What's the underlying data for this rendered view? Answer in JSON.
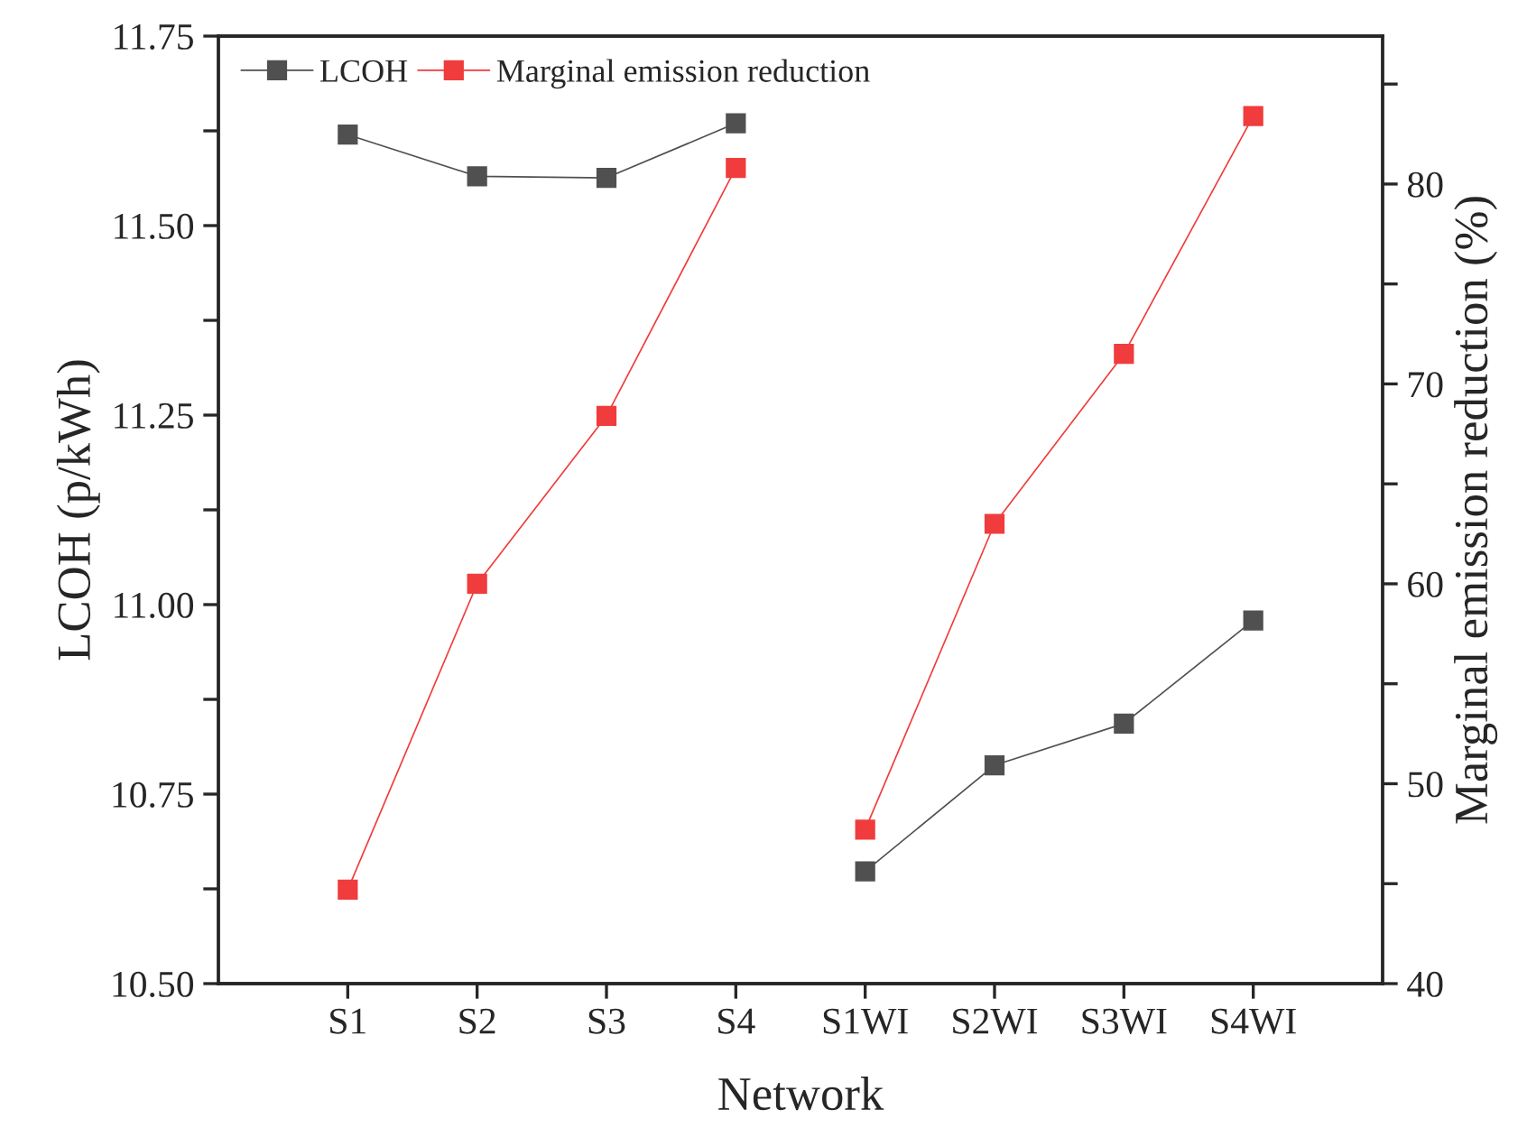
{
  "chart_data": {
    "type": "line",
    "xlabel": "Network",
    "ylabel": "LCOH (p/kWh)",
    "y2label": "Marginal emission reduction (%)",
    "categories": [
      "S1",
      "S2",
      "S3",
      "S4",
      "S1WI",
      "S2WI",
      "S3WI",
      "S4WI"
    ],
    "series": [
      {
        "name": "LCOH",
        "color": "#505050",
        "values": [
          11.62,
          11.565,
          11.563,
          11.635,
          null,
          null,
          null,
          null
        ]
      },
      {
        "color": "#505050",
        "values": [
          null,
          null,
          null,
          null,
          10.648,
          10.788,
          10.843,
          10.979
        ]
      },
      {
        "name": "Marginal emission reduction",
        "color": "#f03c3c",
        "axis": "y2",
        "values": [
          44.7,
          60.0,
          68.4,
          80.8,
          null,
          null,
          null,
          null
        ]
      },
      {
        "color": "#f03c3c",
        "axis": "y2",
        "values": [
          null,
          null,
          null,
          null,
          47.7,
          63.0,
          71.5,
          83.4
        ]
      }
    ],
    "ylim": [
      10.5,
      11.75
    ],
    "yticks": [
      {
        "value": 10.5,
        "label": "10.50"
      },
      {
        "value": 10.625,
        "label": null
      },
      10.75,
      {
        "value": 10.875,
        "label": null
      },
      {
        "value": 11.0,
        "label": "11.00"
      },
      {
        "value": 11.125,
        "label": null
      },
      11.25,
      {
        "value": 11.375,
        "label": null
      },
      {
        "value": 11.5,
        "label": "11.50"
      },
      {
        "value": 11.625,
        "label": null
      },
      11.75
    ],
    "y2lim": [
      40,
      87.4
    ],
    "y2ticks": [
      40,
      {
        "value": 45,
        "label": null
      },
      50,
      {
        "value": 55,
        "label": null
      },
      60,
      {
        "value": 65,
        "label": null
      },
      70,
      {
        "value": 75,
        "label": null
      },
      80,
      {
        "value": 85,
        "label": null
      }
    ],
    "marker": "square",
    "line_style": "solid",
    "legend": "top left",
    "grid": false
  }
}
